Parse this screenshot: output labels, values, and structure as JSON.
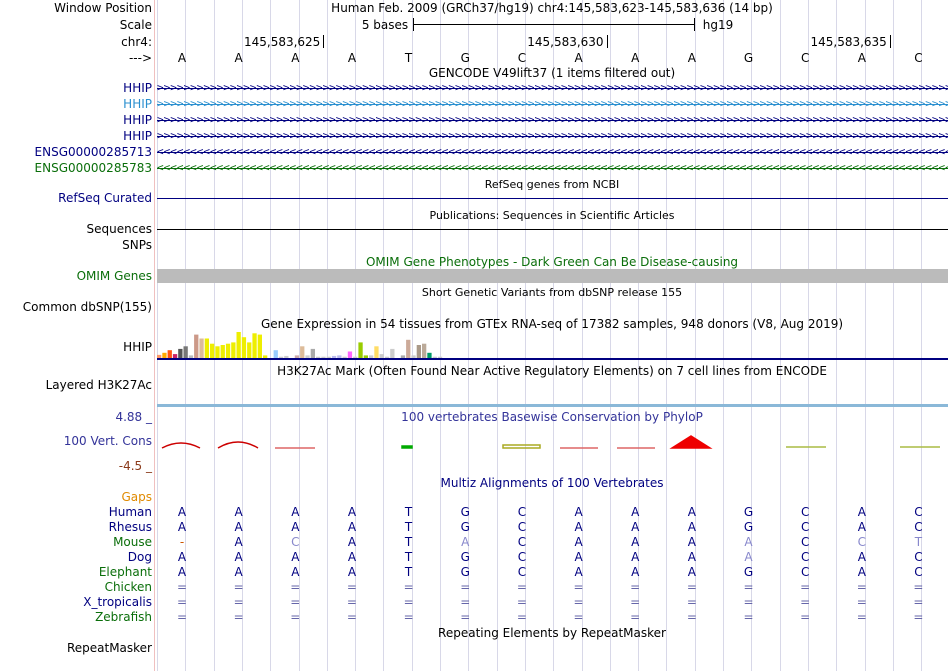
{
  "header": {
    "window_position_label": "Window Position",
    "window_position_text": "Human Feb. 2009 (GRCh37/hg19)   chr4:145,583,623-145,583,636 (14 bp)",
    "scale_label": "Scale",
    "scale_text": "5 bases",
    "scale_assembly": "hg19",
    "chrom_label": "chr4:",
    "arrow_label": "--->",
    "ruler_ticks": [
      "145,583,625",
      "145,583,630",
      "145,583,635"
    ]
  },
  "sequence": [
    "A",
    "A",
    "A",
    "A",
    "T",
    "G",
    "C",
    "A",
    "A",
    "A",
    "G",
    "C",
    "A",
    "C"
  ],
  "gencode": {
    "title": "GENCODE V49lift37 (1 items filtered out)",
    "genes": [
      {
        "name": "HHIP",
        "color": "#000080",
        "dir": ">"
      },
      {
        "name": "HHIP",
        "color": "#2a8fcf",
        "dir": ">"
      },
      {
        "name": "HHIP",
        "color": "#000080",
        "dir": ">"
      },
      {
        "name": "HHIP",
        "color": "#000080",
        "dir": ">"
      },
      {
        "name": "ENSG00000285713",
        "color": "#000080",
        "dir": "<"
      },
      {
        "name": "ENSG00000285783",
        "color": "#0a6e0a",
        "dir": "<"
      }
    ]
  },
  "refseq": {
    "title": "RefSeq genes from NCBI",
    "label": "RefSeq Curated",
    "color": "#000080"
  },
  "publications": {
    "title": "Publications: Sequences in Scientific Articles",
    "label": "Sequences"
  },
  "snps_label": "SNPs",
  "omim": {
    "title": "OMIM Gene Phenotypes - Dark Green Can Be Disease-causing",
    "label": "OMIM Genes",
    "color": "#0a6e0a"
  },
  "dbsnp": {
    "title": "Short Genetic Variants from dbSNP release 155",
    "label": "Common dbSNP(155)"
  },
  "gtex": {
    "title": "Gene Expression in 54 tissues from GTEx RNA-seq of 17382 samples, 948 donors (V8, Aug 2019)",
    "label": "HHIP",
    "bars": [
      {
        "v": 0.12,
        "c": "#ff9966"
      },
      {
        "v": 0.2,
        "c": "#ffaa00"
      },
      {
        "v": 0.3,
        "c": "#ff5511"
      },
      {
        "v": 0.15,
        "c": "#cc2266"
      },
      {
        "v": 0.35,
        "c": "#555555"
      },
      {
        "v": 0.45,
        "c": "#777777"
      },
      {
        "v": 0.1,
        "c": "#bbbbbb"
      },
      {
        "v": 0.9,
        "c": "#cc9988"
      },
      {
        "v": 0.75,
        "c": "#ddbb99"
      },
      {
        "v": 0.75,
        "c": "#eeee00"
      },
      {
        "v": 0.55,
        "c": "#eeee00"
      },
      {
        "v": 0.45,
        "c": "#eeee00"
      },
      {
        "v": 0.5,
        "c": "#eeee00"
      },
      {
        "v": 0.55,
        "c": "#eeee00"
      },
      {
        "v": 0.6,
        "c": "#eeee00"
      },
      {
        "v": 1.0,
        "c": "#eeee00"
      },
      {
        "v": 0.8,
        "c": "#eeee00"
      },
      {
        "v": 0.6,
        "c": "#eeee00"
      },
      {
        "v": 0.95,
        "c": "#eeee00"
      },
      {
        "v": 0.9,
        "c": "#eeee00"
      },
      {
        "v": 0.1,
        "c": "#eeee00"
      },
      {
        "v": 0.0,
        "c": "#ffffff"
      },
      {
        "v": 0.3,
        "c": "#99ccff"
      },
      {
        "v": 0.05,
        "c": "#cccccc"
      },
      {
        "v": 0.08,
        "c": "#cccccc"
      },
      {
        "v": 0.0,
        "c": "#ffffff"
      },
      {
        "v": 0.1,
        "c": "#ccaaaa"
      },
      {
        "v": 0.45,
        "c": "#ddbb99"
      },
      {
        "v": 0.1,
        "c": "#cccccc"
      },
      {
        "v": 0.35,
        "c": "#aaaaaa"
      },
      {
        "v": 0.05,
        "c": "#cccccc"
      },
      {
        "v": 0.05,
        "c": "#cccccc"
      },
      {
        "v": 0.05,
        "c": "#cccccc"
      },
      {
        "v": 0.08,
        "c": "#bbbbee"
      },
      {
        "v": 0.1,
        "c": "#bbbbee"
      },
      {
        "v": 0.05,
        "c": "#cccccc"
      },
      {
        "v": 0.25,
        "c": "#ff66ff"
      },
      {
        "v": 0.05,
        "c": "#cccccc"
      },
      {
        "v": 0.6,
        "c": "#99cc00"
      },
      {
        "v": 0.1,
        "c": "#99cc00"
      },
      {
        "v": 0.1,
        "c": "#cccccc"
      },
      {
        "v": 0.45,
        "c": "#ffdd66"
      },
      {
        "v": 0.15,
        "c": "#cccccc"
      },
      {
        "v": 0.05,
        "c": "#cccccc"
      },
      {
        "v": 0.35,
        "c": "#cccccc"
      },
      {
        "v": 0.0,
        "c": "#ffffff"
      },
      {
        "v": 0.1,
        "c": "#aaaaaa"
      },
      {
        "v": 0.7,
        "c": "#ccaa99"
      },
      {
        "v": 0.1,
        "c": "#cccccc"
      },
      {
        "v": 0.5,
        "c": "#aa9988"
      },
      {
        "v": 0.55,
        "c": "#bbaa99"
      },
      {
        "v": 0.2,
        "c": "#009966"
      },
      {
        "v": 0.05,
        "c": "#cccccc"
      },
      {
        "v": 0.05,
        "c": "#cccccc"
      }
    ]
  },
  "h3k27ac": {
    "title": "H3K27Ac Mark (Often Found Near Active Regulatory Elements) on 7 cell lines from ENCODE",
    "label": "Layered H3K27Ac"
  },
  "phylop": {
    "title": "100 vertebrates Basewise Conservation by PhyloP",
    "label": "100 Vert. Cons",
    "max": "4.88 _",
    "min": "-4.5 _"
  },
  "multiz": {
    "title": "Multiz Alignments of 100 Vertebrates",
    "gaps_label": "Gaps",
    "species": [
      {
        "name": "Human",
        "color": "#000080",
        "bases": [
          "A",
          "A",
          "A",
          "A",
          "T",
          "G",
          "C",
          "A",
          "A",
          "A",
          "G",
          "C",
          "A",
          "C"
        ],
        "colors": [
          "#000080",
          "#000080",
          "#000080",
          "#000080",
          "#000080",
          "#000080",
          "#000080",
          "#000080",
          "#000080",
          "#000080",
          "#000080",
          "#000080",
          "#000080",
          "#000080"
        ]
      },
      {
        "name": "Rhesus",
        "color": "#000080",
        "bases": [
          "A",
          "A",
          "A",
          "A",
          "T",
          "G",
          "C",
          "A",
          "A",
          "A",
          "G",
          "C",
          "A",
          "C"
        ],
        "colors": [
          "#000080",
          "#000080",
          "#000080",
          "#000080",
          "#000080",
          "#000080",
          "#000080",
          "#000080",
          "#000080",
          "#000080",
          "#000080",
          "#000080",
          "#000080",
          "#000080"
        ]
      },
      {
        "name": "Mouse",
        "color": "#0a6e0a",
        "bases": [
          "-",
          "A",
          "C",
          "A",
          "T",
          "A",
          "C",
          "A",
          "A",
          "A",
          "A",
          "C",
          "C",
          "T"
        ],
        "colors": [
          "#cc5500",
          "#000080",
          "#8888cc",
          "#000080",
          "#000080",
          "#8888cc",
          "#000080",
          "#000080",
          "#000080",
          "#000080",
          "#8888cc",
          "#000080",
          "#8888cc",
          "#8888cc"
        ]
      },
      {
        "name": "Dog",
        "color": "#000080",
        "bases": [
          "A",
          "A",
          "A",
          "A",
          "T",
          "G",
          "C",
          "A",
          "A",
          "A",
          "A",
          "C",
          "A",
          "C"
        ],
        "colors": [
          "#000080",
          "#000080",
          "#000080",
          "#000080",
          "#000080",
          "#000080",
          "#000080",
          "#000080",
          "#000080",
          "#000080",
          "#8888cc",
          "#000080",
          "#000080",
          "#000080"
        ]
      },
      {
        "name": "Elephant",
        "color": "#0a6e0a",
        "bases": [
          "A",
          "A",
          "A",
          "A",
          "T",
          "G",
          "C",
          "A",
          "A",
          "A",
          "G",
          "C",
          "A",
          "C"
        ],
        "colors": [
          "#000080",
          "#000080",
          "#000080",
          "#000080",
          "#000080",
          "#000080",
          "#000080",
          "#000080",
          "#000080",
          "#000080",
          "#000080",
          "#000080",
          "#000080",
          "#000080"
        ]
      },
      {
        "name": "Chicken",
        "color": "#0a6e0a",
        "bases": [
          "=",
          "=",
          "=",
          "=",
          "=",
          "=",
          "=",
          "=",
          "=",
          "=",
          "=",
          "=",
          "=",
          "="
        ],
        "colors": [
          "#6666aa",
          "#6666aa",
          "#6666aa",
          "#6666aa",
          "#6666aa",
          "#6666aa",
          "#6666aa",
          "#6666aa",
          "#6666aa",
          "#6666aa",
          "#6666aa",
          "#6666aa",
          "#6666aa",
          "#6666aa"
        ]
      },
      {
        "name": "X_tropicalis",
        "color": "#000080",
        "bases": [
          "=",
          "=",
          "=",
          "=",
          "=",
          "=",
          "=",
          "=",
          "=",
          "=",
          "=",
          "=",
          "=",
          "="
        ],
        "colors": [
          "#6666aa",
          "#6666aa",
          "#6666aa",
          "#6666aa",
          "#6666aa",
          "#6666aa",
          "#6666aa",
          "#6666aa",
          "#6666aa",
          "#6666aa",
          "#6666aa",
          "#6666aa",
          "#6666aa",
          "#6666aa"
        ]
      },
      {
        "name": "Zebrafish",
        "color": "#0a6e0a",
        "bases": [
          "=",
          "=",
          "=",
          "=",
          "=",
          "=",
          "=",
          "=",
          "=",
          "=",
          "=",
          "=",
          "=",
          "="
        ],
        "colors": [
          "#6666aa",
          "#6666aa",
          "#6666aa",
          "#6666aa",
          "#6666aa",
          "#6666aa",
          "#6666aa",
          "#6666aa",
          "#6666aa",
          "#6666aa",
          "#6666aa",
          "#6666aa",
          "#6666aa",
          "#6666aa"
        ]
      }
    ]
  },
  "repeatmasker": {
    "title": "Repeating Elements by RepeatMasker",
    "label": "RepeatMasker"
  },
  "colors": {
    "accent_navy": "#000080",
    "gaps_orange": "#e08a00",
    "phylop_blue": "#333399",
    "phylop_neg": "#8b3a1a",
    "grid": "#d8d8e8",
    "omim_gray": "#bbbbbb"
  }
}
